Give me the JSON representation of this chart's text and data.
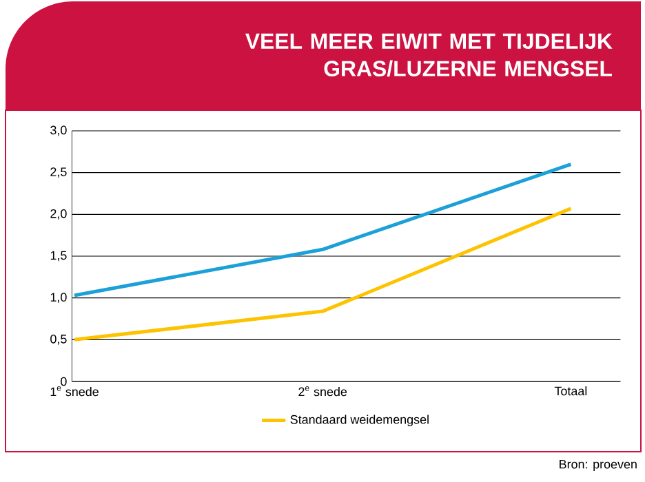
{
  "chart_data": {
    "type": "line",
    "title": "VEEL MEER EIWIT MET TIJDELIJK GRAS/LUZERNE MENGSEL",
    "categories": [
      "1$^{e}$ snede",
      "2$^{e}$ snede",
      "Totaal"
    ],
    "series": [
      {
        "name": "Standaard weidemengsel",
        "color": "#fdc300",
        "values": [
          0.5,
          0.84,
          2.07
        ]
      },
      {
        "color": "#1ba0d7",
        "values": [
          1.03,
          1.58,
          2.6
        ]
      }
    ],
    "ylim": [
      0,
      3
    ],
    "yticks": [
      0,
      {
        "value": 0.5,
        "label": "0,5"
      },
      {
        "value": 1,
        "label": "1,0"
      },
      {
        "value": 1.5,
        "label": "1,5"
      },
      {
        "value": 2,
        "label": "2,0"
      },
      {
        "value": 2.5,
        "label": "2,5"
      },
      {
        "value": 3,
        "label": "3,0"
      }
    ],
    "grid": "y",
    "legend": "bottom",
    "marker": "none",
    "line_style": "solid",
    "annotations": [
      "Bron: proeven"
    ]
  }
}
